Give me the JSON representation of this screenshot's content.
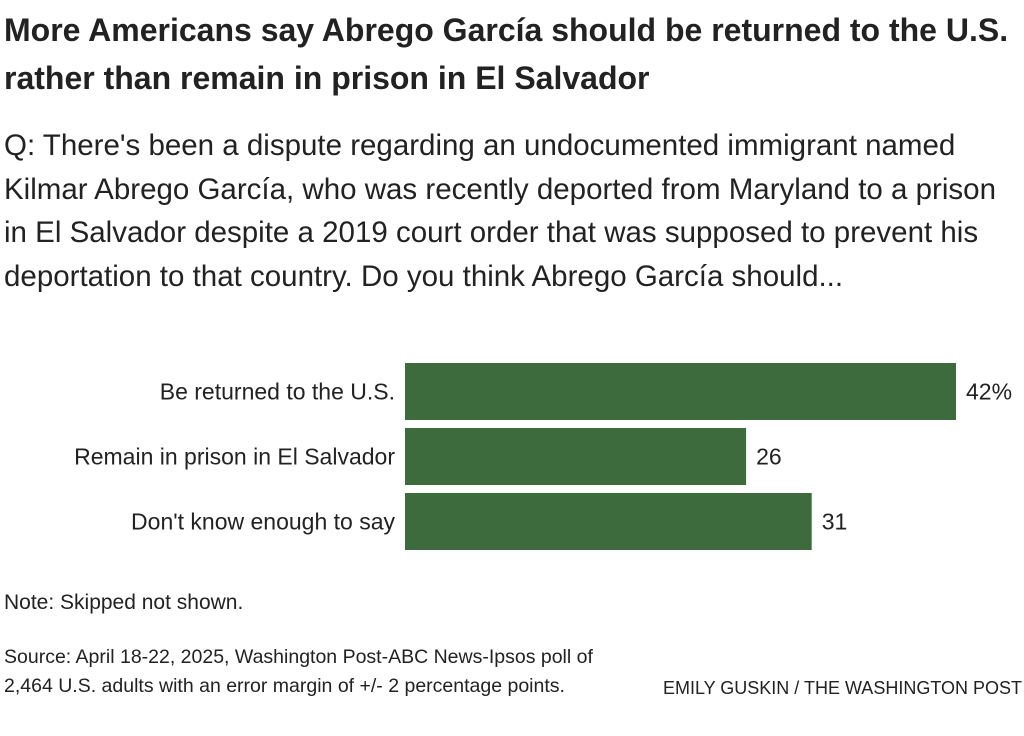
{
  "header": {
    "title": "More Americans say Abrego García should be returned to the U.S. rather than remain in prison in El Salvador",
    "question": "Q: There's been a dispute regarding an undocumented immigrant named Kilmar Abrego García, who was recently deported from Maryland to a prison in El Salvador despite a 2019 court order that was supposed to prevent his deportation to that country. Do you think Abrego García should..."
  },
  "chart_data": {
    "type": "bar",
    "orientation": "horizontal",
    "categories": [
      "Be returned to the U.S.",
      "Remain in prison in El Salvador",
      "Don't know enough to say"
    ],
    "values": [
      42,
      26,
      31
    ],
    "value_labels": [
      "42%",
      "26",
      "31"
    ],
    "bar_color": "#3d6b3d",
    "xlim": [
      0,
      42
    ],
    "grid": false,
    "legend": "none"
  },
  "footer": {
    "note": "Note: Skipped not shown.",
    "source": "Source: April 18-22, 2025, Washington Post-ABC News-Ipsos poll of 2,464 U.S. adults with an error margin of +/- 2 percentage points.",
    "credit": "EMILY GUSKIN / THE WASHINGTON POST"
  }
}
